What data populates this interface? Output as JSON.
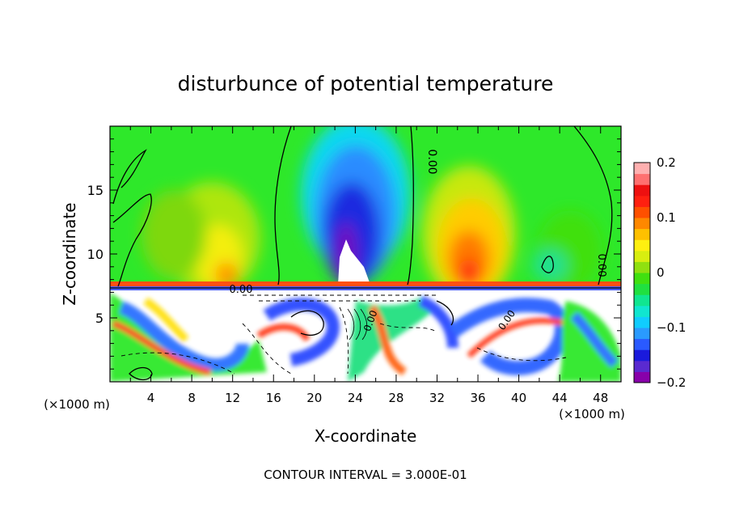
{
  "chart_data": {
    "type": "heatmap",
    "title": "disturbunce of potential temperature",
    "xlabel": "X-coordinate",
    "ylabel": "Z-coordinate",
    "x_unit": "(×1000 m)",
    "y_unit": "(×1000 m)",
    "xlim": [
      0,
      50
    ],
    "ylim": [
      0,
      20
    ],
    "x_ticks": [
      "4",
      "8",
      "12",
      "16",
      "20",
      "24",
      "28",
      "32",
      "36",
      "40",
      "44",
      "48"
    ],
    "y_ticks": [
      "5",
      "10",
      "15"
    ],
    "colorbar": {
      "range": [
        -0.2,
        0.2
      ],
      "tick_labels": [
        "0.2",
        "0.1",
        "0",
        "−0.1",
        "−0.2"
      ],
      "colors": [
        "#8800aa",
        "#5a2ad0",
        "#1a1adc",
        "#2a5aff",
        "#2a9aff",
        "#10ccff",
        "#10e6d0",
        "#10e690",
        "#20e040",
        "#40e010",
        "#90e010",
        "#d8ee10",
        "#fff010",
        "#ffc000",
        "#ff8800",
        "#ff5000",
        "#ff2010",
        "#ee1010",
        "#ff7070",
        "#ffb0b0"
      ]
    },
    "contour_labels": [
      "0.00",
      "0.00",
      "0.00",
      "0.00",
      "0.00"
    ],
    "footer": "CONTOUR INTERVAL = 3.000E-01"
  }
}
